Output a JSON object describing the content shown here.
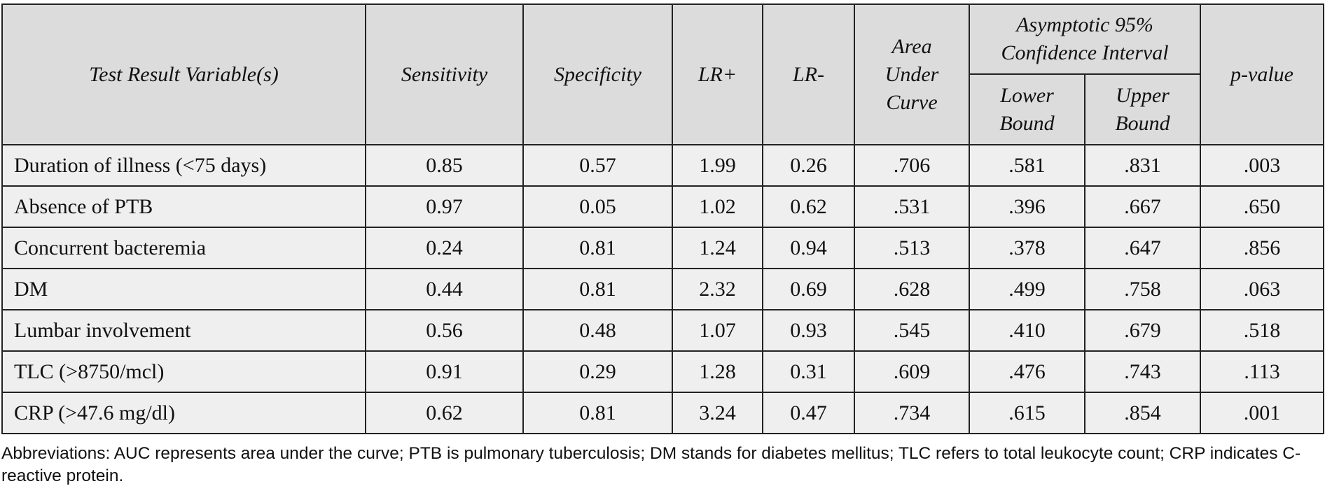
{
  "table": {
    "header": {
      "variable": "Test Result Variable(s)",
      "sensitivity": "Sensitivity",
      "specificity": "Specificity",
      "lr_pos": "LR+",
      "lr_neg": "LR-",
      "auc": "Area Under Curve",
      "ci": "Asymptotic 95% Confidence Interval",
      "lower": "Lower Bound",
      "upper": "Upper Bound",
      "p": "p-value"
    },
    "rows": [
      [
        "Duration of illness (<75 days)",
        "0.85",
        "0.57",
        "1.99",
        "0.26",
        ".706",
        ".581",
        ".831",
        ".003"
      ],
      [
        "Absence of PTB",
        "0.97",
        "0.05",
        "1.02",
        "0.62",
        ".531",
        ".396",
        ".667",
        ".650"
      ],
      [
        "Concurrent bacteremia",
        "0.24",
        "0.81",
        "1.24",
        "0.94",
        ".513",
        ".378",
        ".647",
        ".856"
      ],
      [
        "DM",
        "0.44",
        "0.81",
        "2.32",
        "0.69",
        ".628",
        ".499",
        ".758",
        ".063"
      ],
      [
        "Lumbar involvement",
        "0.56",
        "0.48",
        "1.07",
        "0.93",
        ".545",
        ".410",
        ".679",
        ".518"
      ],
      [
        "TLC (>8750/mcl)",
        "0.91",
        "0.29",
        "1.28",
        "0.31",
        ".609",
        ".476",
        ".743",
        ".113"
      ],
      [
        "CRP (>47.6 mg/dl)",
        "0.62",
        "0.81",
        "3.24",
        "0.47",
        ".734",
        ".615",
        ".854",
        ".001"
      ]
    ],
    "footnote": "Abbreviations: AUC represents area under the curve; PTB is pulmonary tuberculosis; DM stands for diabetes mellitus; TLC refers to total leukocyte count; CRP indicates C-reactive protein."
  }
}
